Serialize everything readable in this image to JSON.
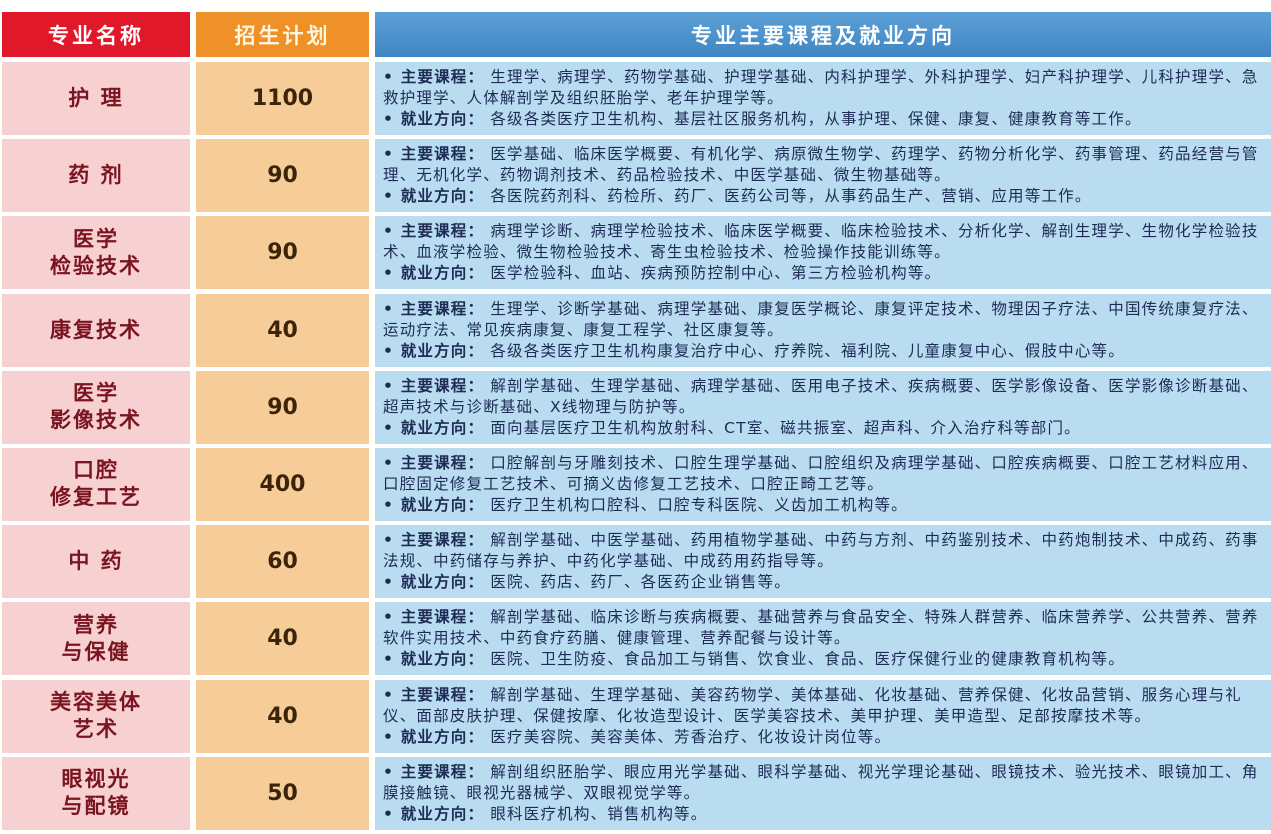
{
  "headers": {
    "name": "专业名称",
    "plan": "招生计划",
    "desc": "专业主要课程及就业方向"
  },
  "labels": {
    "courses": "• 主要课程：",
    "career": "• 就业方向："
  },
  "colors": {
    "name_header": "#e0182a",
    "plan_header": "#ee9128",
    "desc_header": "#3f86c4",
    "name_cell": "#f7d0d1",
    "plan_cell": "#f6cd98",
    "desc_cell": "#b9dcf1"
  },
  "rows": [
    {
      "name": "护 理",
      "plan": "1100",
      "courses": "生理学、病理学、药物学基础、护理学基础、内科护理学、外科护理学、妇产科护理学、儿科护理学、急救护理学、人体解剖学及组织胚胎学、老年护理学等。",
      "career": "各级各类医疗卫生机构、基层社区服务机构，从事护理、保健、康复、健康教育等工作。"
    },
    {
      "name": "药 剂",
      "plan": "90",
      "courses": "医学基础、临床医学概要、有机化学、病原微生物学、药理学、药物分析化学、药事管理、药品经营与管理、无机化学、药物调剂技术、药品检验技术、中医学基础、微生物基础等。",
      "career": "各医院药剂科、药检所、药厂、医药公司等，从事药品生产、营销、应用等工作。"
    },
    {
      "name": "医学\n检验技术",
      "plan": "90",
      "courses": "病理学诊断、病理学检验技术、临床医学概要、临床检验技术、分析化学、解剖生理学、生物化学检验技术、血液学检验、微生物检验技术、寄生虫检验技术、检验操作技能训练等。",
      "career": "医学检验科、血站、疾病预防控制中心、第三方检验机构等。"
    },
    {
      "name": "康复技术",
      "plan": "40",
      "courses": "生理学、诊断学基础、病理学基础、康复医学概论、康复评定技术、物理因子疗法、中国传统康复疗法、运动疗法、常见疾病康复、康复工程学、社区康复等。",
      "career": "各级各类医疗卫生机构康复治疗中心、疗养院、福利院、儿童康复中心、假肢中心等。"
    },
    {
      "name": "医学\n影像技术",
      "plan": "90",
      "courses": "解剖学基础、生理学基础、病理学基础、医用电子技术、疾病概要、医学影像设备、医学影像诊断基础、超声技术与诊断基础、X线物理与防护等。",
      "career": "面向基层医疗卫生机构放射科、CT室、磁共振室、超声科、介入治疗科等部门。"
    },
    {
      "name": "口腔\n修复工艺",
      "plan": "400",
      "courses": "口腔解剖与牙雕刻技术、口腔生理学基础、口腔组织及病理学基础、口腔疾病概要、口腔工艺材料应用、口腔固定修复工艺技术、可摘义齿修复工艺技术、口腔正畸工艺等。",
      "career": "医疗卫生机构口腔科、口腔专科医院、义齿加工机构等。"
    },
    {
      "name": "中 药",
      "plan": "60",
      "courses": "解剖学基础、中医学基础、药用植物学基础、中药与方剂、中药鉴别技术、中药炮制技术、中成药、药事法规、中药储存与养护、中药化学基础、中成药用药指导等。",
      "career": "医院、药店、药厂、各医药企业销售等。"
    },
    {
      "name": "营养\n与保健",
      "plan": "40",
      "courses": "解剖学基础、临床诊断与疾病概要、基础营养与食品安全、特殊人群营养、临床营养学、公共营养、营养软件实用技术、中药食疗药膳、健康管理、营养配餐与设计等。",
      "career": "医院、卫生防疫、食品加工与销售、饮食业、食品、医疗保健行业的健康教育机构等。"
    },
    {
      "name": "美容美体\n艺术",
      "plan": "40",
      "courses": "解剖学基础、生理学基础、美容药物学、美体基础、化妆基础、营养保健、化妆品营销、服务心理与礼仪、面部皮肤护理、保健按摩、化妆造型设计、医学美容技术、美甲护理、美甲造型、足部按摩技术等。",
      "career": "医疗美容院、美容美体、芳香治疗、化妆设计岗位等。"
    },
    {
      "name": "眼视光\n与配镜",
      "plan": "50",
      "courses": "解剖组织胚胎学、眼应用光学基础、眼科学基础、视光学理论基础、眼镜技术、验光技术、眼镜加工、角膜接触镜、眼视光器械学、双眼视觉学等。",
      "career": "眼科医疗机构、销售机构等。"
    }
  ]
}
